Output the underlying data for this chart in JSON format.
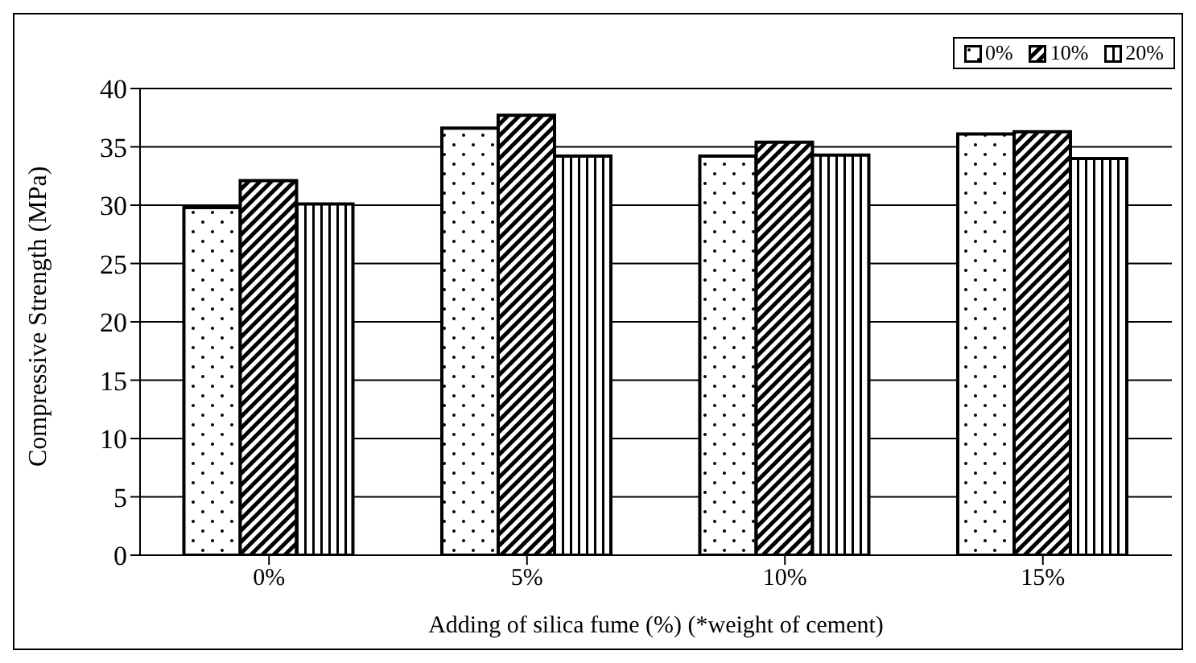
{
  "chart_data": {
    "type": "bar",
    "xlabel": "Adding of silica fume (%) (*weight of cement)",
    "ylabel": "Compressive Strength (MPa)",
    "categories": [
      "0%",
      "5%",
      "10%",
      "15%"
    ],
    "series": [
      {
        "name": "0%",
        "color": "#000000",
        "values": [
          29.8,
          36.6,
          34.2,
          36.1
        ]
      },
      {
        "name": "10%",
        "color": "#000000",
        "values": [
          32.1,
          37.7,
          35.4,
          36.3
        ]
      },
      {
        "name": "20%",
        "color": "#000000",
        "values": [
          30.1,
          34.2,
          34.3,
          34.0
        ]
      }
    ],
    "ylim": [
      0,
      40
    ],
    "yticks": [
      0,
      5,
      10,
      15,
      20,
      25,
      30,
      35,
      40
    ],
    "grid": "y",
    "legend": "top right"
  }
}
